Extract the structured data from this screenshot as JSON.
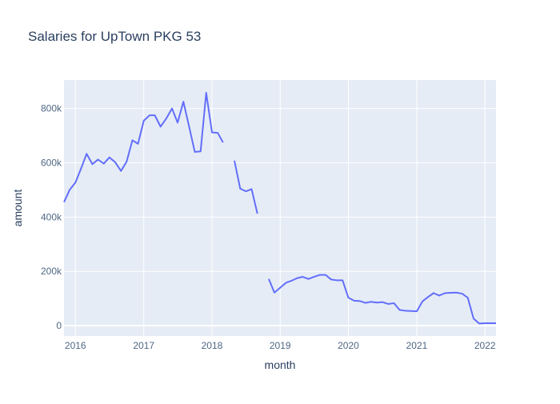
{
  "chart_data": {
    "type": "line",
    "title": "Salaries for UpTown PKG 53",
    "xlabel": "month",
    "ylabel": "amount",
    "x_ticks": [
      "2016",
      "2017",
      "2018",
      "2019",
      "2020",
      "2021",
      "2022"
    ],
    "y_ticks": [
      {
        "value": 0,
        "label": "0"
      },
      {
        "value": 200000,
        "label": "200k"
      },
      {
        "value": 400000,
        "label": "400k"
      },
      {
        "value": 600000,
        "label": "600k"
      },
      {
        "value": 800000,
        "label": "800k"
      }
    ],
    "xlim": [
      "2015-11-01",
      "2022-03-01"
    ],
    "ylim": [
      -38000,
      905000
    ],
    "grid": true,
    "colors": {
      "line": "#636efa",
      "plot_bg": "#e5ecf6",
      "grid": "#ffffff",
      "text": "#2a3f5f",
      "tick_text": "#506784"
    },
    "series": [
      {
        "segments": [
          [
            [
              "2015-11-01",
              455000
            ],
            [
              "2015-12-01",
              500000
            ],
            [
              "2016-01-01",
              527000
            ],
            [
              "2016-02-01",
              580000
            ],
            [
              "2016-03-01",
              633000
            ],
            [
              "2016-04-01",
              595000
            ],
            [
              "2016-05-01",
              612000
            ],
            [
              "2016-06-01",
              597000
            ],
            [
              "2016-07-01",
              620000
            ],
            [
              "2016-08-01",
              602000
            ],
            [
              "2016-09-01",
              570000
            ],
            [
              "2016-10-01",
              604000
            ],
            [
              "2016-11-01",
              683000
            ],
            [
              "2016-12-01",
              670000
            ],
            [
              "2017-01-01",
              755000
            ],
            [
              "2017-02-01",
              775000
            ],
            [
              "2017-03-01",
              775000
            ],
            [
              "2017-04-01",
              733000
            ],
            [
              "2017-05-01",
              763000
            ],
            [
              "2017-06-01",
              800000
            ],
            [
              "2017-07-01",
              748000
            ],
            [
              "2017-08-01",
              825000
            ],
            [
              "2017-09-01",
              732000
            ],
            [
              "2017-10-01",
              640000
            ],
            [
              "2017-11-01",
              642000
            ],
            [
              "2017-12-01",
              858000
            ],
            [
              "2018-01-01",
              712000
            ],
            [
              "2018-02-01",
              710000
            ],
            [
              "2018-03-01",
              675000
            ]
          ],
          [
            [
              "2018-05-01",
              608000
            ],
            [
              "2018-06-01",
              505000
            ],
            [
              "2018-07-01",
              495000
            ],
            [
              "2018-08-01",
              503000
            ],
            [
              "2018-09-01",
              413000
            ]
          ],
          [
            [
              "2018-11-01",
              172000
            ],
            [
              "2018-12-01",
              122000
            ],
            [
              "2019-01-01",
              140000
            ],
            [
              "2019-02-01",
              158000
            ],
            [
              "2019-03-01",
              165000
            ],
            [
              "2019-04-01",
              175000
            ],
            [
              "2019-05-01",
              180000
            ],
            [
              "2019-06-01",
              172000
            ],
            [
              "2019-07-01",
              180000
            ],
            [
              "2019-08-01",
              187000
            ],
            [
              "2019-09-01",
              187000
            ],
            [
              "2019-10-01",
              170000
            ],
            [
              "2019-11-01",
              167000
            ],
            [
              "2019-12-01",
              167000
            ],
            [
              "2020-01-01",
              103000
            ],
            [
              "2020-02-01",
              92000
            ],
            [
              "2020-03-01",
              91000
            ],
            [
              "2020-04-01",
              84000
            ],
            [
              "2020-05-01",
              88000
            ],
            [
              "2020-06-01",
              85000
            ],
            [
              "2020-07-01",
              87000
            ],
            [
              "2020-08-01",
              80000
            ],
            [
              "2020-09-01",
              83000
            ],
            [
              "2020-10-01",
              58000
            ],
            [
              "2020-11-01",
              55000
            ],
            [
              "2020-12-01",
              54000
            ],
            [
              "2021-01-01",
              53000
            ],
            [
              "2021-02-01",
              90000
            ],
            [
              "2021-03-01",
              105000
            ],
            [
              "2021-04-01",
              120000
            ],
            [
              "2021-05-01",
              111000
            ],
            [
              "2021-06-01",
              120000
            ],
            [
              "2021-07-01",
              121000
            ],
            [
              "2021-08-01",
              122000
            ],
            [
              "2021-09-01",
              118000
            ],
            [
              "2021-10-01",
              103000
            ],
            [
              "2021-11-01",
              26000
            ],
            [
              "2021-12-01",
              8000
            ],
            [
              "2022-01-01",
              9000
            ],
            [
              "2022-02-01",
              9000
            ],
            [
              "2022-03-01",
              9000
            ]
          ]
        ]
      }
    ]
  }
}
